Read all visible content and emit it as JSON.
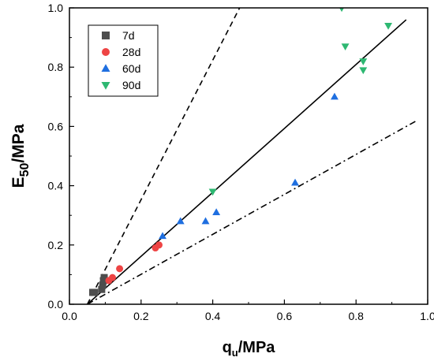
{
  "chart_data": {
    "type": "scatter",
    "xlabel": {
      "main": "q",
      "sub": "u",
      "unit": "/MPa"
    },
    "ylabel": {
      "main": "E",
      "sub": "50",
      "unit": "/MPa"
    },
    "xlim": [
      0.0,
      1.0
    ],
    "ylim": [
      0.0,
      1.0
    ],
    "x_ticks": [
      "0.0",
      "0.2",
      "0.4",
      "0.6",
      "0.8",
      "1.0"
    ],
    "y_ticks": [
      "0.0",
      "0.2",
      "0.4",
      "0.6",
      "0.8",
      "1.0"
    ],
    "grid": false,
    "legend_position": "top-left",
    "series": [
      {
        "name": "7d",
        "marker": "square",
        "color": "#4d4d4d",
        "points": [
          [
            0.065,
            0.04
          ],
          [
            0.07,
            0.04
          ],
          [
            0.09,
            0.05
          ],
          [
            0.093,
            0.065
          ],
          [
            0.095,
            0.08
          ],
          [
            0.097,
            0.09
          ]
        ]
      },
      {
        "name": "28d",
        "marker": "circle",
        "color": "#ee4444",
        "points": [
          [
            0.11,
            0.08
          ],
          [
            0.12,
            0.09
          ],
          [
            0.14,
            0.12
          ],
          [
            0.24,
            0.19
          ],
          [
            0.25,
            0.2
          ]
        ]
      },
      {
        "name": "60d",
        "marker": "triangle-up",
        "color": "#1f6fe0",
        "points": [
          [
            0.26,
            0.23
          ],
          [
            0.31,
            0.28
          ],
          [
            0.38,
            0.28
          ],
          [
            0.41,
            0.31
          ],
          [
            0.63,
            0.41
          ],
          [
            0.74,
            0.7
          ]
        ]
      },
      {
        "name": "90d",
        "marker": "triangle-down",
        "color": "#2eb872",
        "points": [
          [
            0.4,
            0.38
          ],
          [
            0.76,
            1.0
          ],
          [
            0.77,
            0.87
          ],
          [
            0.82,
            0.82
          ],
          [
            0.82,
            0.79
          ],
          [
            0.89,
            0.94
          ]
        ]
      }
    ],
    "lines": [
      {
        "style": "dashed",
        "from": [
          0.05,
          0.0
        ],
        "to": [
          0.475,
          1.0
        ]
      },
      {
        "style": "solid",
        "from": [
          0.05,
          0.0
        ],
        "to": [
          0.94,
          0.96
        ]
      },
      {
        "style": "dashdot",
        "from": [
          0.05,
          0.0
        ],
        "to": [
          0.97,
          0.62
        ]
      }
    ]
  }
}
